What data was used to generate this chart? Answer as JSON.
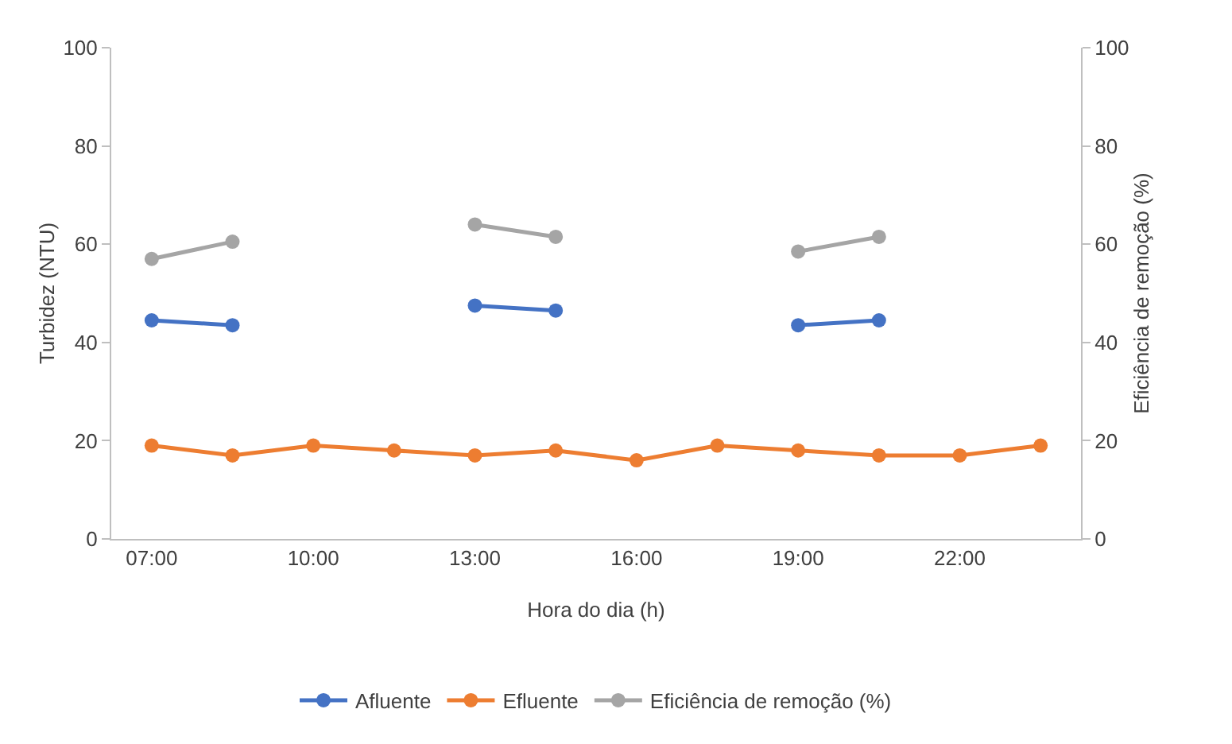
{
  "chart_data": {
    "type": "line",
    "xlabel": "Hora do dia (h)",
    "ylabel": "Turbidez (NTU)",
    "y2label": "Eficiência de remoção (%)",
    "categories": [
      "07:00",
      null,
      "10:00",
      null,
      "13:00",
      null,
      "16:00",
      null,
      "19:00",
      null,
      "22:00",
      null
    ],
    "ylim": [
      0,
      100
    ],
    "yticks": [
      0,
      20,
      40,
      60,
      80,
      100
    ],
    "y2lim": [
      0,
      100
    ],
    "y2ticks": [
      0,
      20,
      40,
      60,
      80,
      100
    ],
    "grid": false,
    "legend": "bottom",
    "marker": "circle",
    "line_style": "solid",
    "series": [
      {
        "name": "Afluente",
        "color": "#4472c4",
        "values": [
          44.5,
          43.5,
          null,
          null,
          47.5,
          46.5,
          null,
          null,
          43.5,
          44.5,
          null,
          null
        ]
      },
      {
        "name": "Efluente",
        "color": "#ed7d31",
        "values": [
          19,
          17,
          19,
          18,
          17,
          18,
          16,
          19,
          18,
          17,
          17,
          19
        ]
      },
      {
        "name": "Eficiência de remoção (%)",
        "color": "#a5a5a5",
        "axis": "y2",
        "values": [
          57,
          60.5,
          null,
          null,
          64,
          61.5,
          null,
          null,
          58.5,
          61.5,
          null,
          null
        ]
      }
    ]
  }
}
